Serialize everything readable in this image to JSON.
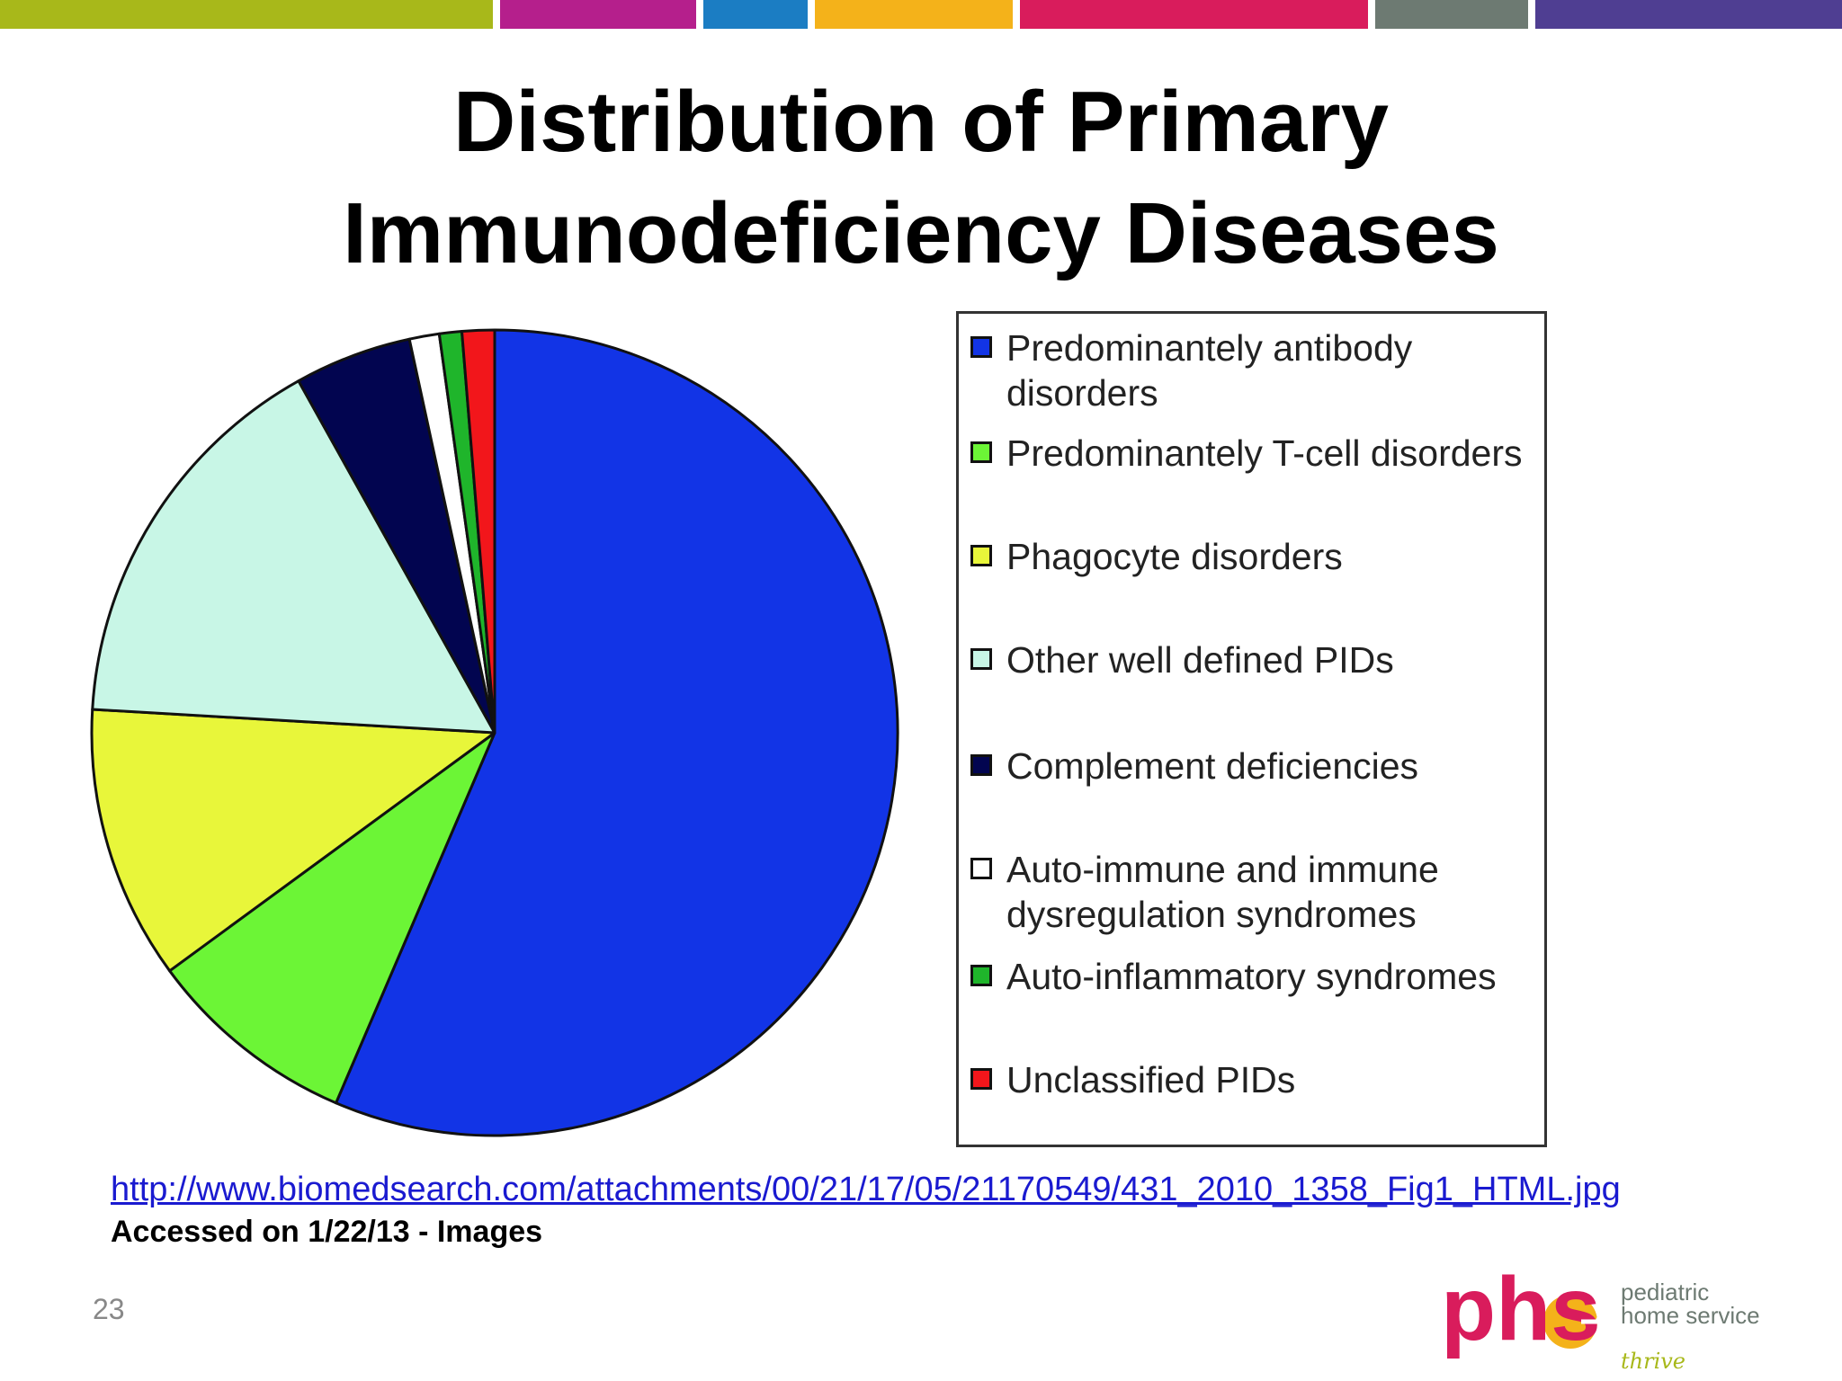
{
  "slide": {
    "title_lines": [
      "Distribution of Primary",
      "Immunodeficiency Diseases"
    ],
    "source_url": "http://www.biomedsearch.com/attachments/00/21/17/05/21170549/431_2010_1358_Fig1_HTML.jpg",
    "accessed_note": "Accessed on 1/22/13 - Images",
    "page_number": "23"
  },
  "top_stripe_colors": [
    "#a8b81a",
    "#b51f8c",
    "#1b7dc3",
    "#f4b21a",
    "#d91c5c",
    "#6d7a72",
    "#4f3e92"
  ],
  "logo": {
    "text": "phs",
    "tagline_lines": [
      "pediatric",
      "home service"
    ],
    "slogan": "thrive"
  },
  "chart_data": {
    "type": "pie",
    "start_angle_deg": 0,
    "direction": "clockwise",
    "series": [
      {
        "name": "Predominantely antibody disorders",
        "value": 56.5,
        "color": "#1234e6"
      },
      {
        "name": "Predominantely T-cell disorders",
        "value": 8.5,
        "color": "#6cf536"
      },
      {
        "name": "Phagocyte disorders",
        "value": 11.0,
        "color": "#e8f63a"
      },
      {
        "name": "Other well defined PIDs",
        "value": 16.0,
        "color": "#c8f6e6"
      },
      {
        "name": "Complement deficiencies",
        "value": 4.7,
        "color": "#020550"
      },
      {
        "name": "Auto-immune and immune dysregulation syndromes",
        "value": 1.2,
        "color": "#ffffff"
      },
      {
        "name": "Auto-inflammatory syndromes",
        "value": 0.9,
        "color": "#1fb52b"
      },
      {
        "name": "Unclassified PIDs",
        "value": 1.3,
        "color": "#f2161b"
      }
    ],
    "legend_placement": "right"
  }
}
